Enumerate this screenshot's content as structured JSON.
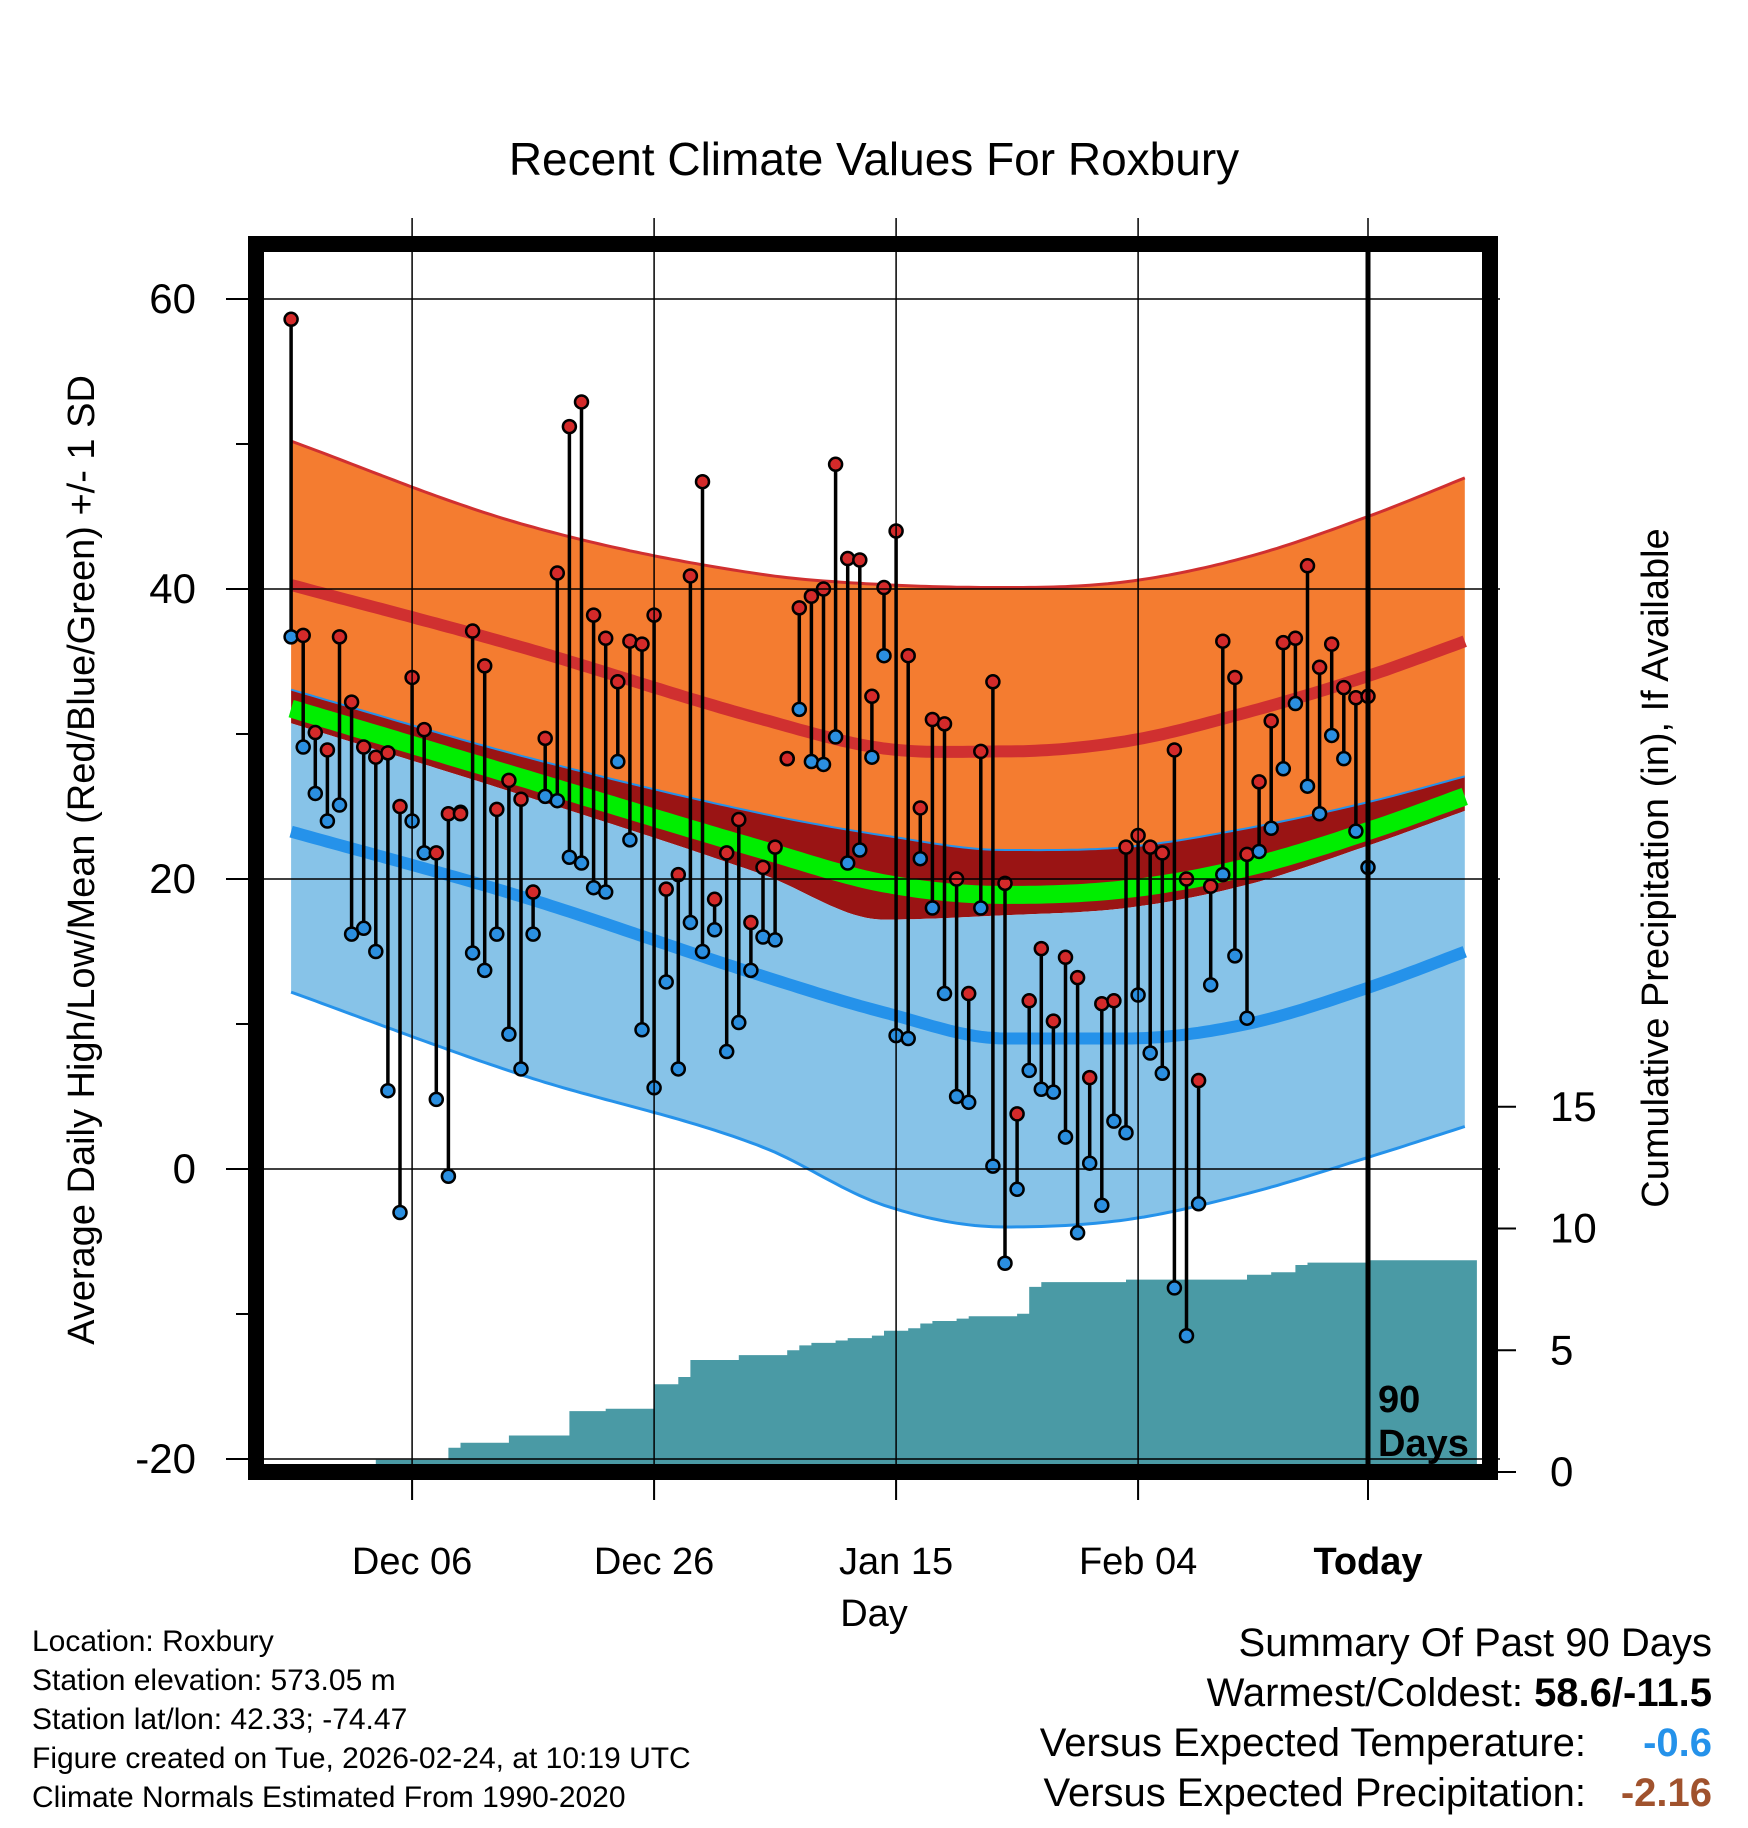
{
  "chart_data": {
    "type": "line",
    "title": "Recent Climate Values For Roxbury",
    "xlabel": "Day",
    "ylabel": "Average Daily High/Low/Mean (Red/Blue/Green) +/- 1 SD",
    "y2label": "Cumulative Precipitation (in), If Available",
    "x_range": [
      -89,
      9
    ],
    "ylim": [
      -21,
      65
    ],
    "y2lim": [
      0,
      15.9
    ],
    "x_ticks": [
      {
        "x": -79,
        "label": "Dec 06"
      },
      {
        "x": -59,
        "label": "Dec 26"
      },
      {
        "x": -39,
        "label": "Jan 15"
      },
      {
        "x": -19,
        "label": "Feb 04"
      },
      {
        "x": 0,
        "label": "Today"
      }
    ],
    "y_ticks": [
      -20,
      0,
      20,
      40,
      60
    ],
    "y2_ticks": [
      0,
      5,
      10,
      15
    ],
    "window_label_line1": "90",
    "window_label_line2": "Days",
    "colors": {
      "high_band": "#F47C30",
      "high_line": "#D03030",
      "mean_band": "#9A1414",
      "mean_line": "#00EE00",
      "low_band": "#87C3E8",
      "low_line": "#2592EA",
      "precip": "#4A9AA5",
      "high_marker": "#D42A2A",
      "low_marker": "#2B8FE0"
    },
    "normals_x": [
      -90,
      -70,
      -50,
      -40,
      -30,
      -20,
      -10,
      0,
      9
    ],
    "normal_high": [
      40.5,
      36.0,
      31.0,
      29.0,
      28.8,
      29.5,
      31.5,
      34.0,
      36.7
    ],
    "normal_high_upper": [
      50.5,
      44.5,
      41.0,
      40.3,
      40.1,
      40.5,
      42.2,
      45.0,
      48.0
    ],
    "normal_low": [
      23.5,
      18.8,
      13.3,
      10.8,
      9.0,
      9.0,
      10.0,
      12.5,
      15.3
    ],
    "normal_low_lower": [
      12.5,
      6.5,
      1.5,
      -2.5,
      -4.0,
      -3.5,
      -1.7,
      0.8,
      3.2
    ],
    "normal_mean": [
      32.0,
      27.0,
      22.0,
      19.7,
      18.9,
      19.3,
      20.8,
      23.3,
      26.0
    ],
    "normal_mean_upper": [
      33.3,
      28.5,
      24.5,
      23.0,
      22.0,
      22.2,
      23.5,
      25.3,
      27.3
    ],
    "normal_mean_lower": [
      31.0,
      25.8,
      20.3,
      17.2,
      17.5,
      18.0,
      19.6,
      22.3,
      25.0
    ],
    "daily_day": [
      -89,
      -88,
      -87,
      -86,
      -85,
      -84,
      -83,
      -82,
      -81,
      -80,
      -79,
      -78,
      -77,
      -76,
      -75,
      -74,
      -73,
      -72,
      -71,
      -70,
      -69,
      -68,
      -67,
      -66,
      -65,
      -64,
      -63,
      -62,
      -61,
      -60,
      -59,
      -58,
      -57,
      -56,
      -55,
      -54,
      -53,
      -52,
      -51,
      -50,
      -49,
      -48,
      -47,
      -46,
      -45,
      -44,
      -43,
      -42,
      -41,
      -40,
      -39,
      -38,
      -37,
      -36,
      -35,
      -34,
      -33,
      -32,
      -31,
      -30,
      -29,
      -28,
      -27,
      -26,
      -25,
      -24,
      -23,
      -22,
      -21,
      -20,
      -19,
      -18,
      -17,
      -16,
      -15,
      -14,
      -13,
      -12,
      -11,
      -10,
      -9,
      -8,
      -7,
      -6,
      -5,
      -4,
      -3,
      -2,
      -1,
      0
    ],
    "daily_high": [
      58.6,
      36.8,
      30.1,
      28.9,
      36.7,
      32.2,
      29.1,
      28.4,
      28.7,
      25.0,
      33.9,
      30.3,
      21.8,
      24.5,
      24.5,
      37.1,
      34.7,
      24.8,
      26.8,
      25.5,
      19.1,
      29.7,
      41.1,
      51.2,
      52.9,
      38.2,
      36.6,
      33.6,
      36.4,
      36.2,
      38.2,
      19.3,
      20.3,
      40.9,
      47.4,
      18.6,
      21.8,
      24.1,
      17.0,
      20.8,
      22.2,
      28.3,
      38.7,
      39.5,
      40.0,
      48.6,
      42.1,
      42.0,
      32.6,
      40.1,
      44.0,
      35.4,
      24.9,
      31.0,
      30.7,
      20.0,
      12.1,
      28.8,
      33.6,
      19.7,
      3.8,
      11.6,
      15.2,
      10.2,
      14.6,
      13.2,
      6.3,
      11.4,
      11.6,
      22.2,
      23.0,
      22.2,
      21.8,
      28.9,
      20.0,
      6.1,
      19.5,
      36.4,
      33.9,
      21.7,
      26.7,
      30.9,
      36.3,
      36.6,
      41.6,
      34.6,
      36.2,
      33.2,
      32.5,
      32.6,
      26.4
    ],
    "daily_low": [
      36.7,
      29.1,
      25.9,
      24.0,
      25.1,
      16.2,
      16.6,
      15.0,
      5.4,
      -3.0,
      24.0,
      21.8,
      4.8,
      -0.5,
      24.6,
      14.9,
      13.7,
      16.2,
      9.3,
      6.9,
      16.2,
      25.7,
      25.4,
      21.5,
      21.1,
      19.4,
      19.1,
      28.1,
      22.7,
      9.6,
      5.6,
      12.9,
      6.9,
      17.0,
      15.0,
      16.5,
      8.1,
      10.1,
      13.7,
      16.0,
      15.8,
      28.3,
      31.7,
      28.1,
      27.9,
      29.8,
      21.1,
      22.0,
      28.4,
      35.4,
      9.2,
      9.0,
      21.4,
      18.0,
      12.1,
      5.0,
      4.6,
      18.0,
      0.2,
      -6.5,
      -1.4,
      6.8,
      5.5,
      5.3,
      2.2,
      -4.4,
      0.4,
      -2.5,
      3.3,
      2.5,
      12.0,
      8.0,
      6.6,
      -8.2,
      -11.5,
      -2.4,
      12.7,
      20.3,
      14.7,
      10.4,
      21.9,
      23.5,
      27.6,
      32.1,
      26.4,
      24.5,
      29.9,
      28.3,
      23.3,
      20.8
    ],
    "precip_x": [
      -89,
      -82,
      -76,
      -75,
      -71,
      -69,
      -67,
      -66,
      -63,
      -60,
      -59,
      -57,
      -56,
      -55,
      -52,
      -49,
      -48,
      -47,
      -46,
      -44,
      -43,
      -42,
      -41,
      -40,
      -39,
      -38,
      -37,
      -36,
      -35,
      -34,
      -33,
      -32,
      -31,
      -29,
      -28,
      -27,
      -25,
      -20,
      -10,
      -9,
      -8,
      -6,
      -5,
      0,
      9
    ],
    "precip_total": [
      0,
      0.5,
      1.0,
      1.2,
      1.5,
      1.5,
      1.5,
      2.5,
      2.6,
      2.6,
      3.6,
      3.9,
      4.6,
      4.6,
      4.8,
      4.8,
      5.0,
      5.2,
      5.3,
      5.4,
      5.5,
      5.5,
      5.6,
      5.8,
      5.8,
      5.9,
      6.1,
      6.2,
      6.2,
      6.3,
      6.4,
      6.4,
      6.4,
      6.5,
      7.6,
      7.8,
      7.8,
      7.9,
      8.1,
      8.1,
      8.2,
      8.5,
      8.6,
      8.7,
      8.7
    ]
  },
  "footer": {
    "location": "Location: Roxbury",
    "elevation": "Station elevation: 573.05 m",
    "latlon": "Station lat/lon: 42.33; -74.47",
    "created": "Figure created on Tue, 2026-02-24, at 10:19 UTC",
    "normals": "Climate Normals Estimated From 1990-2020"
  },
  "summary": {
    "title": "Summary Of Past 90 Days",
    "warmest_coldest_label": "Warmest/Coldest: ",
    "warmest_coldest_value": "58.6/-11.5",
    "temp_label": "Versus Expected Temperature:",
    "temp_value": "-0.6",
    "temp_color": "#2592EA",
    "precip_label": "Versus Expected Precipitation:",
    "precip_value": "-2.16",
    "precip_color": "#A0522D"
  }
}
